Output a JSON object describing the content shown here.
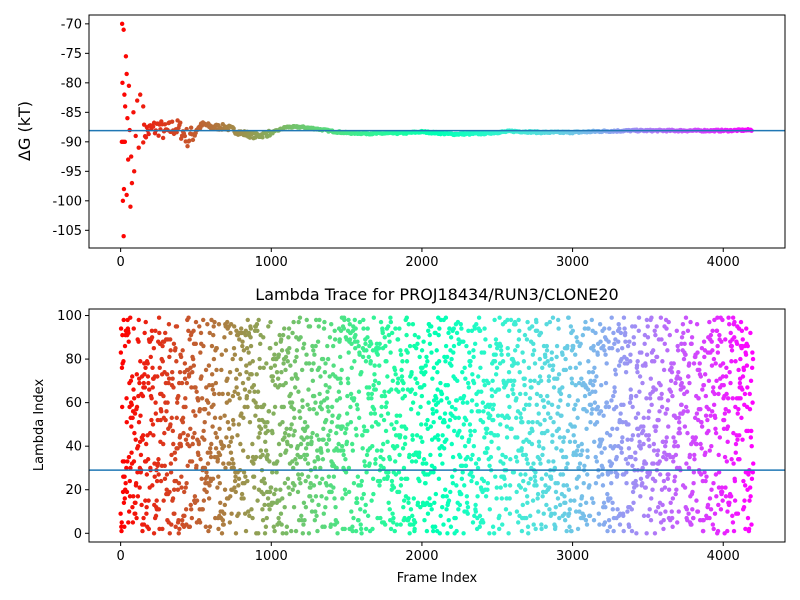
{
  "chart_data": [
    {
      "type": "scatter",
      "title": "",
      "xlabel": "",
      "ylabel": "ΔG (kT)",
      "xlim": [
        -210,
        4410
      ],
      "ylim": [
        -108,
        -68.5
      ],
      "xticks": [
        "0",
        "1000",
        "2000",
        "3000",
        "4000"
      ],
      "yticks": [
        "-70",
        "-75",
        "-80",
        "-85",
        "-90",
        "-95",
        "-100",
        "-105"
      ],
      "hline": -88.1,
      "hline_color": "#1f77b4",
      "colormap": "rainbow",
      "n_frames": 4200,
      "early_points": [
        {
          "x": 10,
          "y": -70
        },
        {
          "x": 20,
          "y": -71
        },
        {
          "x": 35,
          "y": -75.5
        },
        {
          "x": 12,
          "y": -80
        },
        {
          "x": 25,
          "y": -82
        },
        {
          "x": 40,
          "y": -78.5
        },
        {
          "x": 55,
          "y": -80.5
        },
        {
          "x": 30,
          "y": -84
        },
        {
          "x": 8,
          "y": -90
        },
        {
          "x": 18,
          "y": -90
        },
        {
          "x": 28,
          "y": -90
        },
        {
          "x": 45,
          "y": -86
        },
        {
          "x": 60,
          "y": -88
        },
        {
          "x": 70,
          "y": -92.5
        },
        {
          "x": 50,
          "y": -93
        },
        {
          "x": 22,
          "y": -98
        },
        {
          "x": 40,
          "y": -99
        },
        {
          "x": 75,
          "y": -97
        },
        {
          "x": 15,
          "y": -100
        },
        {
          "x": 65,
          "y": -101
        },
        {
          "x": 20,
          "y": -106
        },
        {
          "x": 90,
          "y": -95
        },
        {
          "x": 100,
          "y": -89
        },
        {
          "x": 85,
          "y": -85
        },
        {
          "x": 110,
          "y": -83
        },
        {
          "x": 130,
          "y": -82
        },
        {
          "x": 150,
          "y": -84
        },
        {
          "x": 120,
          "y": -91
        }
      ],
      "tail_points": [
        {
          "x": 150,
          "y": -88.5
        },
        {
          "x": 200,
          "y": -88
        },
        {
          "x": 250,
          "y": -87.5
        },
        {
          "x": 300,
          "y": -88.5
        },
        {
          "x": 350,
          "y": -87.5
        },
        {
          "x": 400,
          "y": -88
        },
        {
          "x": 450,
          "y": -89.5
        },
        {
          "x": 500,
          "y": -88
        },
        {
          "x": 550,
          "y": -87
        },
        {
          "x": 600,
          "y": -87.5
        },
        {
          "x": 700,
          "y": -87.5
        },
        {
          "x": 800,
          "y": -88.5
        },
        {
          "x": 900,
          "y": -89
        },
        {
          "x": 1000,
          "y": -88.5
        },
        {
          "x": 1100,
          "y": -87.5
        },
        {
          "x": 1200,
          "y": -87.5
        },
        {
          "x": 1300,
          "y": -87.8
        },
        {
          "x": 1400,
          "y": -88.2
        },
        {
          "x": 1500,
          "y": -88.5
        },
        {
          "x": 1700,
          "y": -88.6
        },
        {
          "x": 1900,
          "y": -88.5
        },
        {
          "x": 2000,
          "y": -88.3
        },
        {
          "x": 2200,
          "y": -88.7
        },
        {
          "x": 2400,
          "y": -88.6
        },
        {
          "x": 2600,
          "y": -88.2
        },
        {
          "x": 2800,
          "y": -88.4
        },
        {
          "x": 3000,
          "y": -88.4
        },
        {
          "x": 3200,
          "y": -88.2
        },
        {
          "x": 3400,
          "y": -88.1
        },
        {
          "x": 3600,
          "y": -88.1
        },
        {
          "x": 3800,
          "y": -88.1
        },
        {
          "x": 4000,
          "y": -88.1
        },
        {
          "x": 4190,
          "y": -88.0
        }
      ]
    },
    {
      "type": "scatter",
      "title": "Lambda Trace for PROJ18434/RUN3/CLONE20",
      "xlabel": "Frame Index",
      "ylabel": "Lambda Index",
      "xlim": [
        -210,
        4410
      ],
      "ylim": [
        -4,
        103
      ],
      "xticks": [
        "0",
        "1000",
        "2000",
        "3000",
        "4000"
      ],
      "yticks": [
        "0",
        "20",
        "40",
        "60",
        "80",
        "100"
      ],
      "hline": 29,
      "hline_color": "#1f77b4",
      "colormap": "rainbow",
      "n_frames": 4200,
      "lambda_range": [
        0,
        99
      ]
    }
  ]
}
